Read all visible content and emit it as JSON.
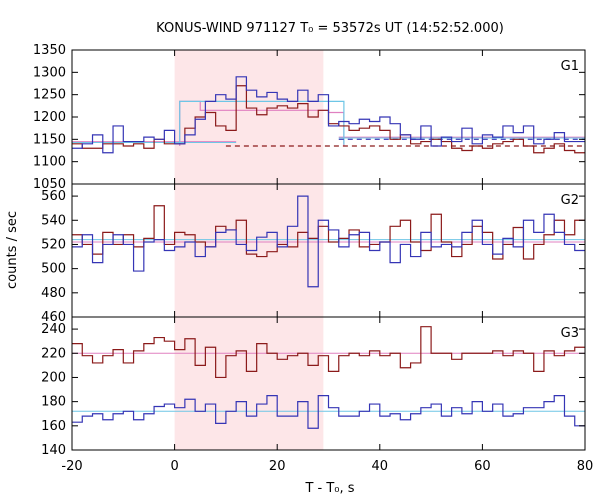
{
  "chart_data": {
    "type": "line",
    "title": "KONUS-WIND 971127 T₀ = 53572s UT (14:52:52.000)",
    "xlabel": "T - T₀, s",
    "ylabel": "counts / sec",
    "xlim": [
      -20,
      80
    ],
    "xticks": [
      -20,
      0,
      20,
      40,
      60,
      80
    ],
    "shaded_interval": [
      0,
      29
    ],
    "colors": {
      "dark_red": "#8b1a1a",
      "blue": "#3535b5",
      "pink_fit": "#e080c0",
      "cyan_fit": "#6ec6e6",
      "shade": "#fde6e8"
    },
    "panels": [
      {
        "label": "G1",
        "ylim": [
          1050,
          1350
        ],
        "yticks": [
          1050,
          1100,
          1150,
          1200,
          1250,
          1300,
          1350
        ],
        "bin_edges": [
          -20,
          -18,
          -16,
          -14,
          -12,
          -10,
          -8,
          -6,
          -4,
          -2,
          0,
          2,
          4,
          6,
          8,
          10,
          12,
          14,
          16,
          18,
          20,
          22,
          24,
          26,
          28,
          30,
          32,
          34,
          36,
          38,
          40,
          42,
          44,
          46,
          48,
          50,
          52,
          54,
          56,
          58,
          60,
          62,
          64,
          66,
          68,
          70,
          72,
          74,
          76,
          78,
          80
        ],
        "series": [
          {
            "values": [
              1140,
              1130,
              1130,
              1140,
              1140,
              1135,
              1140,
              1130,
              1150,
              1140,
              1140,
              1175,
              1200,
              1210,
              1180,
              1170,
              1270,
              1220,
              1205,
              1220,
              1225,
              1220,
              1230,
              1200,
              1215,
              1185,
              1180,
              1170,
              1175,
              1180,
              1170,
              1150,
              1160,
              1140,
              1145,
              1150,
              1145,
              1130,
              1125,
              1135,
              1130,
              1140,
              1145,
              1150,
              1135,
              1120,
              1130,
              1140,
              1125,
              1120
            ]
          },
          {
            "values": [
              1130,
              1140,
              1160,
              1120,
              1180,
              1145,
              1145,
              1155,
              1150,
              1170,
              1140,
              1160,
              1195,
              1235,
              1250,
              1240,
              1290,
              1260,
              1245,
              1255,
              1240,
              1235,
              1260,
              1235,
              1250,
              1180,
              1190,
              1185,
              1195,
              1190,
              1200,
              1185,
              1160,
              1150,
              1180,
              1135,
              1155,
              1145,
              1175,
              1140,
              1160,
              1155,
              1180,
              1165,
              1180,
              1140,
              1150,
              1165,
              1145,
              1145
            ]
          }
        ],
        "fits": [
          {
            "segments": [
              [
                -20,
                12,
                1145
              ],
              [
                32,
                80,
                1155
              ]
            ],
            "pre_level": 1135,
            "burst": [
              [
                1,
                5,
                1235
              ],
              [
                5,
                30,
                1215
              ],
              [
                30,
                33,
                1210
              ]
            ]
          },
          {
            "segments": [
              [
                -20,
                12,
                1143
              ],
              [
                32,
                80,
                1153
              ]
            ],
            "pre_level": 1138,
            "burst": [
              [
                1,
                5,
                1235
              ],
              [
                5,
                30,
                1235
              ],
              [
                30,
                33,
                1235
              ]
            ]
          }
        ],
        "dashed": [
          {
            "x": [
              10,
              80
            ],
            "y": 1135
          },
          {
            "x": [
              32,
              80
            ],
            "y": 1150
          }
        ]
      },
      {
        "label": "G2",
        "ylim": [
          460,
          570
        ],
        "yticks": [
          460,
          480,
          500,
          520,
          540,
          560
        ],
        "bin_edges": [
          -20,
          -18,
          -16,
          -14,
          -12,
          -10,
          -8,
          -6,
          -4,
          -2,
          0,
          2,
          4,
          6,
          8,
          10,
          12,
          14,
          16,
          18,
          20,
          22,
          24,
          26,
          28,
          30,
          32,
          34,
          36,
          38,
          40,
          42,
          44,
          46,
          48,
          50,
          52,
          54,
          56,
          58,
          60,
          62,
          64,
          66,
          68,
          70,
          72,
          74,
          76,
          78,
          80
        ],
        "series": [
          {
            "values": [
              528,
              520,
              512,
              530,
              520,
              528,
              518,
              525,
              552,
              520,
              530,
              528,
              522,
              518,
              535,
              532,
              540,
              512,
              510,
              514,
              520,
              518,
              530,
              525,
              535,
              522,
              525,
              532,
              518,
              520,
              522,
              535,
              540,
              522,
              515,
              545,
              522,
              510,
              520,
              535,
              530,
              508,
              520,
              534,
              508,
              520,
              528,
              540,
              528,
              540
            ]
          },
          {
            "values": [
              518,
              528,
              505,
              520,
              528,
              520,
              498,
              522,
              524,
              515,
              518,
              522,
              510,
              518,
              530,
              532,
              520,
              515,
              526,
              530,
              518,
              535,
              560,
              485,
              540,
              532,
              518,
              528,
              530,
              515,
              522,
              505,
              520,
              510,
              530,
              518,
              520,
              518,
              530,
              540,
              520,
              512,
              525,
              518,
              540,
              530,
              545,
              530,
              520,
              515
            ]
          }
        ],
        "fits": [
          {
            "level": 522
          },
          {
            "level": 524
          }
        ]
      },
      {
        "label": "G3",
        "ylim": [
          140,
          250
        ],
        "yticks": [
          140,
          160,
          180,
          200,
          220,
          240
        ],
        "bin_edges": [
          -20,
          -18,
          -16,
          -14,
          -12,
          -10,
          -8,
          -6,
          -4,
          -2,
          0,
          2,
          4,
          6,
          8,
          10,
          12,
          14,
          16,
          18,
          20,
          22,
          24,
          26,
          28,
          30,
          32,
          34,
          36,
          38,
          40,
          42,
          44,
          46,
          48,
          50,
          52,
          54,
          56,
          58,
          60,
          62,
          64,
          66,
          68,
          70,
          72,
          74,
          76,
          78,
          80
        ],
        "series": [
          {
            "values": [
              228,
              218,
              212,
              218,
              223,
              212,
              222,
              228,
              233,
              230,
              223,
              232,
              210,
              225,
              200,
              218,
              222,
              205,
              228,
              220,
              215,
              218,
              220,
              210,
              218,
              205,
              218,
              220,
              218,
              222,
              218,
              220,
              208,
              212,
              242,
              220,
              220,
              215,
              220,
              220,
              220,
              222,
              218,
              222,
              220,
              205,
              222,
              218,
              222,
              225
            ]
          },
          {
            "values": [
              163,
              168,
              170,
              165,
              170,
              172,
              165,
              170,
              176,
              178,
              175,
              182,
              172,
              178,
              162,
              172,
              180,
              168,
              178,
              185,
              168,
              168,
              180,
              158,
              185,
              175,
              168,
              168,
              172,
              178,
              168,
              170,
              165,
              170,
              175,
              178,
              168,
              175,
              170,
              180,
              172,
              178,
              168,
              170,
              175,
              175,
              180,
              185,
              168,
              160
            ]
          }
        ],
        "fits": [
          {
            "level": 220
          },
          {
            "level": 172
          }
        ]
      }
    ]
  }
}
